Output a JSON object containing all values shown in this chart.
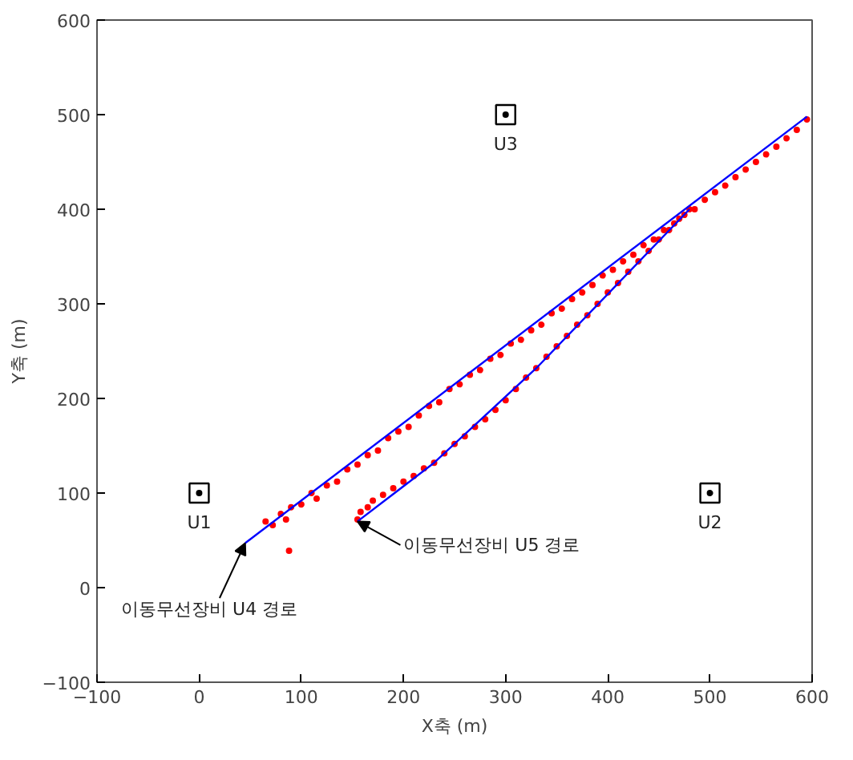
{
  "chart_data": {
    "type": "scatter",
    "xlabel": "X축 (m)",
    "ylabel": "Y축 (m)",
    "xlim": [
      -100,
      600
    ],
    "ylim": [
      -100,
      600
    ],
    "xticks": [
      -100,
      0,
      100,
      200,
      300,
      400,
      500,
      600
    ],
    "yticks": [
      -100,
      0,
      100,
      200,
      300,
      400,
      500,
      600
    ],
    "grid": false,
    "series": [
      {
        "marker": "circle",
        "color": "#ff0000",
        "x": [
          65,
          72,
          80,
          85,
          88,
          90,
          100,
          110,
          115,
          125,
          135,
          145,
          155,
          165,
          175,
          185,
          195,
          205,
          215,
          225,
          235,
          245,
          255,
          265,
          275,
          285,
          295,
          305,
          315,
          325,
          335,
          345,
          355,
          365,
          375,
          385,
          395,
          405,
          415,
          425,
          435,
          445,
          455,
          465,
          475,
          485,
          495,
          505,
          515,
          525,
          535,
          545,
          555,
          565,
          575,
          585,
          595
        ],
        "values": [
          70,
          66,
          78,
          72,
          39,
          85,
          88,
          100,
          94,
          108,
          112,
          125,
          130,
          140,
          145,
          158,
          165,
          170,
          182,
          192,
          196,
          210,
          215,
          225,
          230,
          242,
          246,
          258,
          262,
          272,
          278,
          290,
          295,
          305,
          312,
          320,
          330,
          336,
          345,
          352,
          362,
          368,
          378,
          385,
          394,
          400,
          410,
          418,
          425,
          434,
          442,
          450,
          458,
          466,
          475,
          484,
          495
        ]
      },
      {
        "marker": "circle",
        "color": "#ff0000",
        "x": [
          155,
          158,
          165,
          170,
          180,
          190,
          200,
          210,
          220,
          230,
          240,
          250,
          260,
          270,
          280,
          290,
          300,
          310,
          320,
          330,
          340,
          350,
          360,
          370,
          380,
          390,
          400,
          410,
          420,
          430,
          440,
          450,
          460,
          470,
          480
        ],
        "values": [
          72,
          80,
          85,
          92,
          98,
          105,
          112,
          118,
          126,
          132,
          142,
          152,
          160,
          170,
          178,
          188,
          198,
          210,
          222,
          232,
          244,
          255,
          266,
          278,
          288,
          300,
          312,
          322,
          334,
          345,
          356,
          368,
          378,
          390,
          400
        ]
      },
      {
        "type": "line",
        "color": "#0000ff",
        "x": [
          45,
          595
        ],
        "values": [
          47,
          498
        ]
      },
      {
        "type": "line",
        "color": "#0000ff",
        "x": [
          155,
          230,
          330,
          480
        ],
        "values": [
          70,
          132,
          232,
          400
        ]
      },
      {
        "marker": "square",
        "color": "#000000",
        "x": [
          0,
          500,
          300
        ],
        "values": [
          100,
          100,
          500
        ]
      }
    ],
    "annotations": [
      {
        "text": "U1",
        "x": 0,
        "y": 100
      },
      {
        "text": "U2",
        "x": 500,
        "y": 100
      },
      {
        "text": "U3",
        "x": 300,
        "y": 500
      },
      {
        "text": "이동무선장비 U4 경로",
        "x": 45,
        "y": 47
      },
      {
        "text": "이동무선장비 U5 경로",
        "x": 155,
        "y": 70
      }
    ]
  }
}
